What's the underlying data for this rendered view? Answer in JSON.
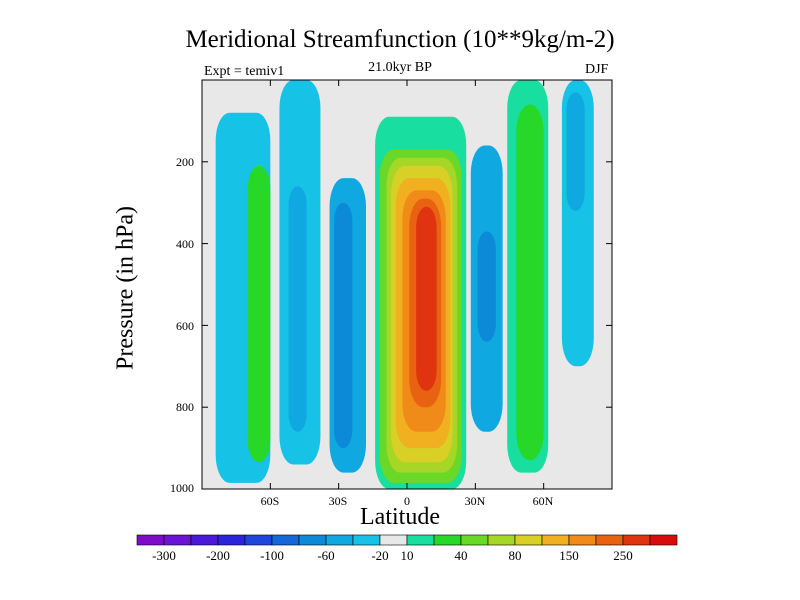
{
  "chart_data": {
    "type": "heatmap",
    "title": "Meridional Streamfunction (10**9kg/m-2)",
    "subtitle": "21.0kyr BP",
    "left_note": "Expt = temiv1",
    "right_note": "DJF",
    "xlabel": "Latitude",
    "ylabel": "Pressure (in hPa)",
    "xlim": [
      -90,
      90
    ],
    "ylim": [
      1000,
      0
    ],
    "x_ticks": [
      {
        "value": -60,
        "label": "60S"
      },
      {
        "value": -30,
        "label": "30S"
      },
      {
        "value": 0,
        "label": "0"
      },
      {
        "value": 30,
        "label": "30N"
      },
      {
        "value": 60,
        "label": "60N"
      }
    ],
    "y_ticks": [
      {
        "value": 200,
        "label": "200"
      },
      {
        "value": 400,
        "label": "400"
      },
      {
        "value": 600,
        "label": "600"
      },
      {
        "value": 800,
        "label": "800"
      },
      {
        "value": 1000,
        "label": "1000"
      }
    ],
    "colorbar": {
      "colors": [
        "#7e0cc8",
        "#6a14d6",
        "#4b1ad8",
        "#2c24dc",
        "#1e46dc",
        "#1668d8",
        "#0c8ad8",
        "#10a8e0",
        "#16c2e6",
        "#e8e8e8",
        "#18dea0",
        "#28d828",
        "#6ad826",
        "#a6d626",
        "#d8d026",
        "#f0b020",
        "#f08a18",
        "#e86212",
        "#e03410",
        "#d80c0c"
      ],
      "tick_labels": [
        "-300",
        "-200",
        "-100",
        "-60",
        "-20",
        "10",
        "40",
        "80",
        "150",
        "250"
      ],
      "tick_boundaries": [
        1,
        3,
        5,
        7,
        9,
        10,
        12,
        14,
        16,
        18
      ]
    },
    "contour_blobs": [
      {
        "lat": [
          -84,
          -60
        ],
        "p": [
          80,
          985
        ],
        "level": 8
      },
      {
        "lat": [
          -70,
          -60
        ],
        "p": [
          210,
          935
        ],
        "level": 11
      },
      {
        "lat": [
          -56,
          -38
        ],
        "p": [
          0,
          940
        ],
        "level": 8
      },
      {
        "lat": [
          -52,
          -44
        ],
        "p": [
          260,
          860
        ],
        "level": 7
      },
      {
        "lat": [
          -34,
          -18
        ],
        "p": [
          240,
          960
        ],
        "level": 7
      },
      {
        "lat": [
          -32,
          -24
        ],
        "p": [
          300,
          900
        ],
        "level": 6
      },
      {
        "lat": [
          -14,
          26
        ],
        "p": [
          90,
          1000
        ],
        "level": 10
      },
      {
        "lat": [
          -12,
          24
        ],
        "p": [
          170,
          985
        ],
        "level": 12
      },
      {
        "lat": [
          -9,
          22
        ],
        "p": [
          190,
          960
        ],
        "level": 13
      },
      {
        "lat": [
          -7,
          20
        ],
        "p": [
          210,
          935
        ],
        "level": 14
      },
      {
        "lat": [
          -5,
          19
        ],
        "p": [
          240,
          900
        ],
        "level": 15
      },
      {
        "lat": [
          -2,
          17
        ],
        "p": [
          270,
          860
        ],
        "level": 16
      },
      {
        "lat": [
          1,
          15
        ],
        "p": [
          290,
          800
        ],
        "level": 17
      },
      {
        "lat": [
          4,
          13
        ],
        "p": [
          310,
          760
        ],
        "level": 18
      },
      {
        "lat": [
          28,
          42
        ],
        "p": [
          160,
          860
        ],
        "level": 7
      },
      {
        "lat": [
          31,
          39
        ],
        "p": [
          370,
          640
        ],
        "level": 6
      },
      {
        "lat": [
          44,
          62
        ],
        "p": [
          0,
          960
        ],
        "level": 10
      },
      {
        "lat": [
          48,
          60
        ],
        "p": [
          60,
          930
        ],
        "level": 11
      },
      {
        "lat": [
          68,
          82
        ],
        "p": [
          0,
          700
        ],
        "level": 8
      },
      {
        "lat": [
          70,
          78
        ],
        "p": [
          30,
          320
        ],
        "level": 7
      }
    ]
  }
}
